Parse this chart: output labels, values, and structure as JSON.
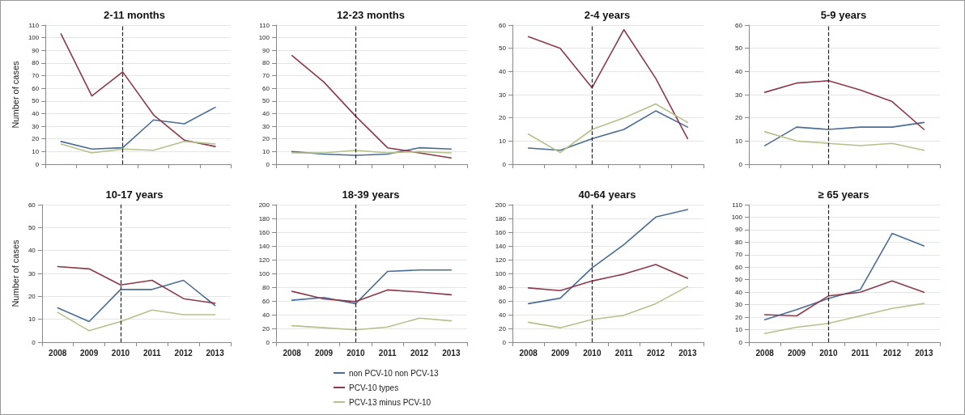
{
  "chart_data": [
    {
      "type": "line",
      "title": "2-11 months",
      "ylabel": "Number of cases",
      "categories": [
        "2008",
        "2009",
        "2010",
        "2011",
        "2012",
        "2013"
      ],
      "tick_labels": "y",
      "ylim": [
        0,
        110
      ],
      "yticks": [
        0,
        10,
        20,
        30,
        40,
        50,
        60,
        70,
        80,
        90,
        100,
        110
      ],
      "grid": "y",
      "marker": "none",
      "line_style": "solid",
      "ref_lines": [
        {
          "axis": "x",
          "value": "2010",
          "color": "#222222",
          "line_style": "dashed"
        }
      ],
      "series": [
        {
          "color": "#4a6d95",
          "values": [
            18,
            12,
            13,
            35,
            32,
            45
          ]
        },
        {
          "color": "#8b3a4a",
          "values": [
            103,
            54,
            73,
            39,
            19,
            14
          ]
        },
        {
          "color": "#b5c18a",
          "values": [
            16,
            9,
            12,
            11,
            18,
            16
          ]
        }
      ]
    },
    {
      "type": "line",
      "title": "12-23 months",
      "categories": [
        "2008",
        "2009",
        "2010",
        "2011",
        "2012",
        "2013"
      ],
      "tick_labels": "y",
      "ylim": [
        0,
        110
      ],
      "yticks": [
        0,
        10,
        20,
        30,
        40,
        50,
        60,
        70,
        80,
        90,
        100,
        110
      ],
      "grid": "y",
      "marker": "none",
      "line_style": "solid",
      "ref_lines": [
        {
          "axis": "x",
          "value": "2010",
          "color": "#222222",
          "line_style": "dashed"
        }
      ],
      "series": [
        {
          "color": "#4a6d95",
          "values": [
            10,
            8,
            7,
            8,
            13,
            12
          ]
        },
        {
          "color": "#8b3a4a",
          "values": [
            86,
            65,
            38,
            13,
            9,
            5
          ]
        },
        {
          "color": "#b5c18a",
          "values": [
            9,
            9,
            11,
            9,
            10,
            9
          ]
        }
      ]
    },
    {
      "type": "line",
      "title": "2-4 years",
      "categories": [
        "2008",
        "2009",
        "2010",
        "2011",
        "2012",
        "2013"
      ],
      "tick_labels": "y",
      "ylim": [
        0,
        60
      ],
      "yticks": [
        0,
        10,
        20,
        30,
        40,
        50,
        60
      ],
      "grid": "y",
      "marker": "none",
      "line_style": "solid",
      "ref_lines": [
        {
          "axis": "x",
          "value": "2010",
          "color": "#222222",
          "line_style": "dashed"
        }
      ],
      "series": [
        {
          "color": "#4a6d95",
          "values": [
            7,
            6,
            11,
            15,
            23,
            16
          ]
        },
        {
          "color": "#8b3a4a",
          "values": [
            55,
            50,
            33,
            58,
            37,
            11
          ]
        },
        {
          "color": "#b5c18a",
          "values": [
            13,
            5,
            15,
            20,
            26,
            18
          ]
        }
      ]
    },
    {
      "type": "line",
      "title": "5-9 years",
      "categories": [
        "2008",
        "2009",
        "2010",
        "2011",
        "2012",
        "2013"
      ],
      "tick_labels": "y",
      "ylim": [
        0,
        60
      ],
      "yticks": [
        0,
        10,
        20,
        30,
        40,
        50,
        60
      ],
      "grid": "y",
      "marker": "none",
      "line_style": "solid",
      "ref_lines": [
        {
          "axis": "x",
          "value": "2010",
          "color": "#222222",
          "line_style": "dashed"
        }
      ],
      "series": [
        {
          "color": "#4a6d95",
          "values": [
            8,
            16,
            15,
            16,
            16,
            18
          ]
        },
        {
          "color": "#8b3a4a",
          "values": [
            31,
            35,
            36,
            32,
            27,
            15
          ]
        },
        {
          "color": "#b5c18a",
          "values": [
            14,
            10,
            9,
            8,
            9,
            6
          ]
        }
      ]
    },
    {
      "type": "line",
      "title": "10-17 years",
      "ylabel": "Number of cases",
      "categories": [
        "2008",
        "2009",
        "2010",
        "2011",
        "2012",
        "2013"
      ],
      "ylim": [
        0,
        60
      ],
      "yticks": [
        0,
        10,
        20,
        30,
        40,
        50,
        60
      ],
      "grid": "y",
      "marker": "none",
      "line_style": "solid",
      "ref_lines": [
        {
          "axis": "x",
          "value": "2010",
          "color": "#222222",
          "line_style": "dashed"
        }
      ],
      "series": [
        {
          "color": "#4a6d95",
          "values": [
            15,
            9,
            23,
            23,
            27,
            16
          ]
        },
        {
          "color": "#8b3a4a",
          "values": [
            33,
            32,
            25,
            27,
            19,
            17
          ]
        },
        {
          "color": "#b5c18a",
          "values": [
            13,
            5,
            9,
            14,
            12,
            12
          ]
        }
      ]
    },
    {
      "type": "line",
      "title": "18-39 years",
      "categories": [
        "2008",
        "2009",
        "2010",
        "2011",
        "2012",
        "2013"
      ],
      "ylim": [
        0,
        200
      ],
      "yticks": [
        0,
        20,
        40,
        60,
        80,
        100,
        120,
        140,
        160,
        180,
        200
      ],
      "grid": "y",
      "marker": "none",
      "line_style": "solid",
      "legend": "bottom",
      "ref_lines": [
        {
          "axis": "x",
          "value": "2010",
          "color": "#222222",
          "line_style": "dashed"
        }
      ],
      "series": [
        {
          "name": "non PCV-10 non PCV-13",
          "color": "#4a6d95",
          "values": [
            61,
            65,
            56,
            103,
            105,
            105
          ]
        },
        {
          "name": "PCV-10 types",
          "color": "#8b3a4a",
          "values": [
            74,
            63,
            59,
            76,
            73,
            69
          ]
        },
        {
          "name": "PCV-13 minus PCV-10",
          "color": "#b5c18a",
          "values": [
            24,
            21,
            18,
            22,
            35,
            31
          ]
        }
      ]
    },
    {
      "type": "line",
      "title": "40-64 years",
      "categories": [
        "2008",
        "2009",
        "2010",
        "2011",
        "2012",
        "2013"
      ],
      "ylim": [
        0,
        200
      ],
      "yticks": [
        0,
        20,
        40,
        60,
        80,
        100,
        120,
        140,
        160,
        180,
        200
      ],
      "grid": "y",
      "marker": "none",
      "line_style": "solid",
      "ref_lines": [
        {
          "axis": "x",
          "value": "2010",
          "color": "#222222",
          "line_style": "dashed"
        }
      ],
      "series": [
        {
          "color": "#4a6d95",
          "values": [
            56,
            64,
            108,
            142,
            182,
            193
          ]
        },
        {
          "color": "#8b3a4a",
          "values": [
            79,
            75,
            89,
            99,
            113,
            93
          ]
        },
        {
          "color": "#b5c18a",
          "values": [
            29,
            21,
            33,
            39,
            56,
            81
          ]
        }
      ]
    },
    {
      "type": "line",
      "title": "≥ 65 years",
      "categories": [
        "2008",
        "2009",
        "2010",
        "2011",
        "2012",
        "2013"
      ],
      "ylim": [
        0,
        110
      ],
      "yticks": [
        0,
        10,
        20,
        30,
        40,
        50,
        60,
        70,
        80,
        90,
        100,
        110
      ],
      "grid": "y",
      "marker": "none",
      "line_style": "solid",
      "ref_lines": [
        {
          "axis": "x",
          "value": "2010",
          "color": "#222222",
          "line_style": "dashed"
        }
      ],
      "series": [
        {
          "color": "#4a6d95",
          "values": [
            18,
            26,
            35,
            42,
            87,
            77
          ]
        },
        {
          "color": "#8b3a4a",
          "values": [
            22,
            21,
            37,
            40,
            49,
            40
          ]
        },
        {
          "color": "#b5c18a",
          "values": [
            7,
            12,
            15,
            21,
            27,
            31
          ]
        }
      ]
    }
  ]
}
